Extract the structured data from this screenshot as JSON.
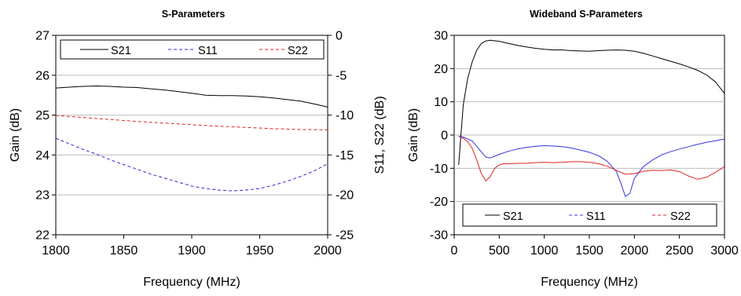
{
  "chart_data": [
    {
      "type": "line",
      "title": "S-Parameters",
      "xlabel": "Frequency (MHz)",
      "ylabel": "Gain (dB)",
      "y2label": "S11, S22 (dB)",
      "xlim": [
        1800,
        2000
      ],
      "ylim": [
        22,
        27
      ],
      "y2lim": [
        -25,
        0
      ],
      "xticks": [
        "1800",
        "1850",
        "1900",
        "1950",
        "2000"
      ],
      "yticks": [
        "22",
        "23",
        "24",
        "25",
        "26",
        "27"
      ],
      "y2ticks": [
        "-25",
        "-20",
        "-15",
        "-10",
        "-5",
        "0"
      ],
      "grid": "horizontal",
      "legend": "top",
      "series": [
        {
          "name": "S21",
          "axis": "left",
          "color": "#000000",
          "dash": "solid",
          "x": [
            1800,
            1810,
            1820,
            1830,
            1840,
            1850,
            1860,
            1870,
            1880,
            1890,
            1900,
            1910,
            1920,
            1930,
            1940,
            1950,
            1960,
            1970,
            1980,
            1990,
            2000
          ],
          "y": [
            25.68,
            25.7,
            25.72,
            25.73,
            25.72,
            25.7,
            25.69,
            25.66,
            25.63,
            25.59,
            25.55,
            25.5,
            25.49,
            25.49,
            25.48,
            25.46,
            25.43,
            25.39,
            25.35,
            25.28,
            25.2
          ]
        },
        {
          "name": "S11",
          "axis": "right",
          "color": "#2a2ad6",
          "dash": "dashed",
          "x": [
            1800,
            1810,
            1820,
            1830,
            1840,
            1850,
            1860,
            1870,
            1880,
            1890,
            1900,
            1910,
            1920,
            1930,
            1940,
            1950,
            1960,
            1970,
            1980,
            1990,
            2000
          ],
          "y": [
            -12.9,
            -13.6,
            -14.3,
            -14.9,
            -15.6,
            -16.2,
            -16.8,
            -17.4,
            -17.9,
            -18.4,
            -18.9,
            -19.2,
            -19.4,
            -19.5,
            -19.4,
            -19.2,
            -18.8,
            -18.3,
            -17.7,
            -17.0,
            -16.1
          ]
        },
        {
          "name": "S22",
          "axis": "right",
          "color": "#e02020",
          "dash": "dashed",
          "x": [
            1800,
            1820,
            1840,
            1860,
            1880,
            1900,
            1920,
            1940,
            1960,
            1980,
            2000
          ],
          "y": [
            -10.05,
            -10.3,
            -10.55,
            -10.8,
            -11.0,
            -11.2,
            -11.4,
            -11.55,
            -11.7,
            -11.8,
            -11.85
          ]
        }
      ]
    },
    {
      "type": "line",
      "title": "Wideband S-Parameters",
      "xlabel": "Frequency (MHz)",
      "ylabel": "Gain (dB)",
      "xlim": [
        0,
        3000
      ],
      "ylim": [
        -30,
        30
      ],
      "xticks": [
        "0",
        "500",
        "1000",
        "1500",
        "2000",
        "2500",
        "3000"
      ],
      "yticks": [
        "-30",
        "-20",
        "-10",
        "0",
        "10",
        "20",
        "30"
      ],
      "grid": "horizontal",
      "legend": "bottom",
      "series": [
        {
          "name": "S21",
          "color": "#000000",
          "dash": "solid",
          "x": [
            50,
            100,
            150,
            200,
            250,
            300,
            350,
            400,
            500,
            600,
            700,
            800,
            900,
            1000,
            1100,
            1200,
            1300,
            1400,
            1500,
            1600,
            1700,
            1800,
            1900,
            2000,
            2100,
            2200,
            2300,
            2400,
            2500,
            2600,
            2700,
            2800,
            2900,
            3000
          ],
          "y": [
            -9,
            9,
            17,
            22,
            25.5,
            27.5,
            28.3,
            28.5,
            28.2,
            27.6,
            27.0,
            26.5,
            26.1,
            25.8,
            25.6,
            25.6,
            25.4,
            25.3,
            25.2,
            25.4,
            25.5,
            25.6,
            25.5,
            25.2,
            24.6,
            23.8,
            23.0,
            22.2,
            21.4,
            20.5,
            19.5,
            18.1,
            16.0,
            12.5
          ]
        },
        {
          "name": "S11",
          "color": "#3434e0",
          "dash": "solid",
          "x": [
            50,
            100,
            200,
            300,
            350,
            400,
            500,
            600,
            700,
            800,
            900,
            1000,
            1100,
            1200,
            1300,
            1400,
            1500,
            1600,
            1700,
            1800,
            1850,
            1900,
            1950,
            2000,
            2100,
            2200,
            2300,
            2400,
            2500,
            2600,
            2700,
            2800,
            2900,
            3000
          ],
          "y": [
            -0.3,
            -0.6,
            -1.8,
            -5.0,
            -6.6,
            -6.9,
            -5.8,
            -4.9,
            -4.2,
            -3.7,
            -3.4,
            -3.2,
            -3.3,
            -3.5,
            -3.9,
            -4.5,
            -5.2,
            -6.2,
            -7.9,
            -11.0,
            -14.5,
            -18.5,
            -17.5,
            -13.0,
            -9.5,
            -7.5,
            -6.0,
            -5.0,
            -4.2,
            -3.5,
            -2.8,
            -2.2,
            -1.7,
            -1.2
          ]
        },
        {
          "name": "S22",
          "color": "#e02424",
          "dash": "solid",
          "x": [
            50,
            100,
            150,
            200,
            250,
            300,
            350,
            400,
            450,
            500,
            550,
            600,
            700,
            800,
            900,
            1000,
            1100,
            1200,
            1300,
            1400,
            1500,
            1600,
            1700,
            1800,
            1900,
            2000,
            2100,
            2200,
            2300,
            2400,
            2500,
            2600,
            2700,
            2800,
            2900,
            3000
          ],
          "y": [
            -0.4,
            -1.0,
            -2.0,
            -4.0,
            -7.5,
            -11.5,
            -13.8,
            -12.5,
            -10.0,
            -9.0,
            -8.6,
            -8.7,
            -8.5,
            -8.5,
            -8.3,
            -8.2,
            -8.3,
            -8.2,
            -8.0,
            -8.0,
            -8.2,
            -8.6,
            -9.4,
            -10.6,
            -11.8,
            -11.6,
            -10.9,
            -10.6,
            -10.7,
            -10.5,
            -11.0,
            -12.3,
            -13.3,
            -12.7,
            -11.2,
            -9.5
          ]
        }
      ]
    }
  ]
}
